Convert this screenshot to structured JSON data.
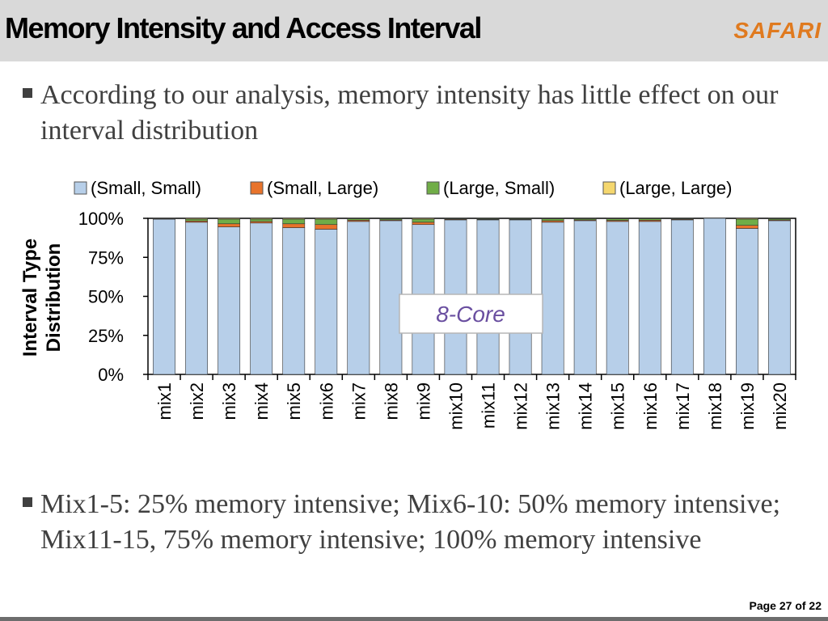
{
  "slide": {
    "title": "Memory Intensity and Access Interval",
    "logo": "SAFARI",
    "bullet1": "According to our analysis, memory intensity has little effect on our interval distribution",
    "bullet2": "Mix1-5: 25% memory intensive; Mix6-10: 50% memory intensive; Mix11-15, 75% memory intensive; 100% memory intensive",
    "footer": "Page 27 of 22"
  },
  "chart_data": {
    "type": "bar",
    "stacked": true,
    "ylabel": "Interval Type Distribution",
    "ylim": [
      0,
      100
    ],
    "yticks": [
      "0%",
      "25%",
      "50%",
      "75%",
      "100%"
    ],
    "annotation": "8-Core",
    "legend_position": "top",
    "categories": [
      "mix1",
      "mix2",
      "mix3",
      "mix4",
      "mix5",
      "mix6",
      "mix7",
      "mix8",
      "mix9",
      "mix10",
      "mix11",
      "mix12",
      "mix13",
      "mix14",
      "mix15",
      "mix16",
      "mix17",
      "mix18",
      "mix19",
      "mix20"
    ],
    "series": [
      {
        "name": "(Small, Small)",
        "color": "#b7cfe9",
        "values": [
          99.5,
          97.5,
          94.5,
          97,
          94,
          93,
          98,
          98.5,
          96,
          99,
          99,
          99,
          97.5,
          98.5,
          98,
          98,
          99,
          100,
          93.5,
          98.5
        ]
      },
      {
        "name": "(Small, Large)",
        "color": "#e8732b",
        "values": [
          0.2,
          0.8,
          2,
          1,
          2.5,
          3,
          0.8,
          0.5,
          1.5,
          0.4,
          0.3,
          0.3,
          1,
          0.5,
          0.7,
          0.8,
          0.4,
          0,
          2,
          0.5
        ]
      },
      {
        "name": "(Large, Small)",
        "color": "#70ad47",
        "values": [
          0.3,
          1.2,
          3,
          1.5,
          3,
          3.5,
          1,
          0.8,
          2,
          0.4,
          0.5,
          0.5,
          1.2,
          0.8,
          1,
          1,
          0.4,
          0,
          4,
          0.8
        ]
      },
      {
        "name": "(Large, Large)",
        "color": "#f5d76e",
        "values": [
          0,
          0.5,
          0.5,
          0.5,
          0.5,
          0.5,
          0.2,
          0.2,
          0.5,
          0.2,
          0.2,
          0.2,
          0.3,
          0.2,
          0.3,
          0.2,
          0.2,
          0,
          0.5,
          0.2
        ]
      }
    ]
  }
}
